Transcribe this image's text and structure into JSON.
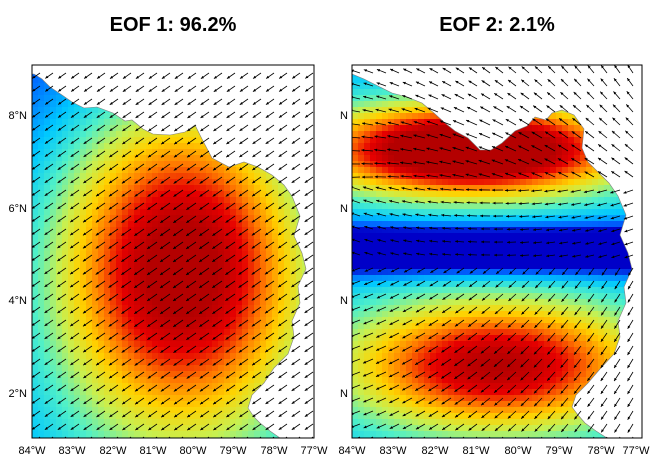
{
  "panels": [
    {
      "title": "EOF 1: 96.2%",
      "lat_labels": [
        "8°N",
        "6°N",
        "4°N",
        "2°N"
      ],
      "lon_labels": [
        "84°W",
        "83°W",
        "82°W",
        "81°W",
        "80°W",
        "79°W",
        "78°W",
        "77°W"
      ],
      "field": "variance magnitude (blue low to red high), peak centred in the middle of the bight",
      "arrow_direction": "predominantly toward the southwest",
      "land_color": "#ffffff",
      "ocean_colormap": [
        "#0000c8",
        "#0064ff",
        "#00c8ff",
        "#50f0c8",
        "#c8f050",
        "#ffd200",
        "#ff7800",
        "#e60000",
        "#b40000"
      ]
    },
    {
      "title": "EOF 2: 2.1%",
      "lat_labels": [
        "N",
        "N",
        "N",
        "N"
      ],
      "lon_labels": [
        "84°W",
        "83°W",
        "82°W",
        "81°W",
        "80°W",
        "79°W",
        "78°W",
        "77°W"
      ],
      "field": "two lobes: strong maximum near the northern coast, blue minimum band near 5°N, secondary maximum in the south",
      "arrow_direction": "westward/northwestward in the north band, southwestward in the south band",
      "land_color": "#ffffff",
      "ocean_colormap": [
        "#0000c8",
        "#0064ff",
        "#00c8ff",
        "#50f0c8",
        "#c8f050",
        "#ffd200",
        "#ff7800",
        "#e60000",
        "#b40000"
      ]
    }
  ]
}
